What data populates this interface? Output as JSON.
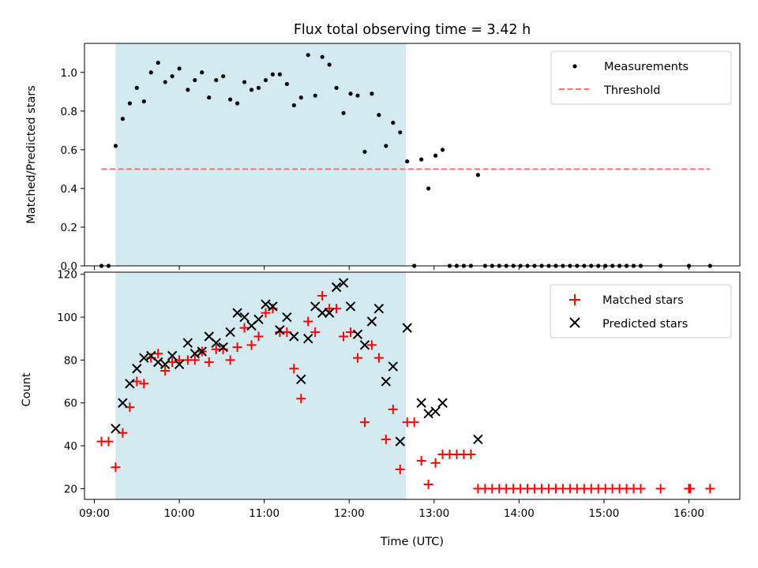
{
  "chart_data": [
    {
      "type": "scatter",
      "title": "Flux total observing time = 3.42 h",
      "xlabel": "",
      "ylabel": "Matched/Predicted stars",
      "xlim": [
        "08:53",
        "16:36"
      ],
      "ylim": [
        0,
        1.15
      ],
      "yticks": [
        0.0,
        0.2,
        0.4,
        0.6,
        0.8,
        1.0
      ],
      "ytick_labels": [
        "0.0",
        "0.2",
        "0.4",
        "0.6",
        "0.8",
        "1.0"
      ],
      "x_tick_times": [
        "09:00",
        "10:00",
        "11:00",
        "12:00",
        "13:00",
        "14:00",
        "15:00",
        "16:00"
      ],
      "shaded_region": {
        "x_start": "09:15",
        "x_end": "12:40",
        "color": "#d3eaf0"
      },
      "legend": {
        "placement": "top-right",
        "entries": [
          "Measurements",
          "Threshold"
        ]
      },
      "series": [
        {
          "name": "Measurements",
          "color": "#000000",
          "marker": "dot",
          "points": [
            [
              "09:05",
              0.0
            ],
            [
              "09:10",
              0.0
            ],
            [
              "09:15",
              0.62
            ],
            [
              "09:20",
              0.76
            ],
            [
              "09:25",
              0.84
            ],
            [
              "09:30",
              0.92
            ],
            [
              "09:35",
              0.85
            ],
            [
              "09:40",
              1.0
            ],
            [
              "09:45",
              1.05
            ],
            [
              "09:50",
              0.95
            ],
            [
              "09:55",
              0.98
            ],
            [
              "10:00",
              1.02
            ],
            [
              "10:06",
              0.91
            ],
            [
              "10:11",
              0.96
            ],
            [
              "10:16",
              1.0
            ],
            [
              "10:21",
              0.87
            ],
            [
              "10:26",
              0.96
            ],
            [
              "10:31",
              0.98
            ],
            [
              "10:36",
              0.86
            ],
            [
              "10:41",
              0.84
            ],
            [
              "10:46",
              0.95
            ],
            [
              "10:51",
              0.91
            ],
            [
              "10:56",
              0.92
            ],
            [
              "11:01",
              0.96
            ],
            [
              "11:06",
              0.99
            ],
            [
              "11:11",
              0.99
            ],
            [
              "11:16",
              0.94
            ],
            [
              "11:21",
              0.83
            ],
            [
              "11:26",
              0.87
            ],
            [
              "11:31",
              1.09
            ],
            [
              "11:36",
              0.88
            ],
            [
              "11:41",
              1.08
            ],
            [
              "11:46",
              1.04
            ],
            [
              "11:51",
              0.92
            ],
            [
              "11:56",
              0.79
            ],
            [
              "12:01",
              0.89
            ],
            [
              "12:06",
              0.88
            ],
            [
              "12:11",
              0.59
            ],
            [
              "12:16",
              0.89
            ],
            [
              "12:21",
              0.78
            ],
            [
              "12:26",
              0.62
            ],
            [
              "12:31",
              0.74
            ],
            [
              "12:36",
              0.69
            ],
            [
              "12:41",
              0.54
            ],
            [
              "12:46",
              0.0
            ],
            [
              "12:51",
              0.55
            ],
            [
              "12:56",
              0.4
            ],
            [
              "13:01",
              0.57
            ],
            [
              "13:06",
              0.6
            ],
            [
              "13:11",
              0.0
            ],
            [
              "13:16",
              0.0
            ],
            [
              "13:21",
              0.0
            ],
            [
              "13:26",
              0.0
            ],
            [
              "13:31",
              0.47
            ],
            [
              "13:36",
              0.0
            ],
            [
              "13:41",
              0.0
            ],
            [
              "13:46",
              0.0
            ],
            [
              "13:51",
              0.0
            ],
            [
              "13:56",
              0.0
            ],
            [
              "14:01",
              0.0
            ],
            [
              "14:06",
              0.0
            ],
            [
              "14:11",
              0.0
            ],
            [
              "14:16",
              0.0
            ],
            [
              "14:21",
              0.0
            ],
            [
              "14:26",
              0.0
            ],
            [
              "14:31",
              0.0
            ],
            [
              "14:36",
              0.0
            ],
            [
              "14:41",
              0.0
            ],
            [
              "14:46",
              0.0
            ],
            [
              "14:51",
              0.0
            ],
            [
              "14:56",
              0.0
            ],
            [
              "15:01",
              0.0
            ],
            [
              "15:06",
              0.0
            ],
            [
              "15:11",
              0.0
            ],
            [
              "15:16",
              0.0
            ],
            [
              "15:21",
              0.0
            ],
            [
              "15:26",
              0.0
            ],
            [
              "15:40",
              0.0
            ],
            [
              "16:00",
              0.0
            ],
            [
              "16:15",
              0.0
            ]
          ]
        },
        {
          "name": "Threshold",
          "color": "#ff7070",
          "style": "dashed-line",
          "points": [
            [
              "09:05",
              0.5
            ],
            [
              "16:15",
              0.5
            ]
          ]
        }
      ]
    },
    {
      "type": "scatter",
      "title": "",
      "xlabel": "Time (UTC)",
      "ylabel": "Count",
      "xlim": [
        "08:53",
        "16:36"
      ],
      "ylim": [
        15,
        121
      ],
      "yticks": [
        20,
        40,
        60,
        80,
        100,
        120
      ],
      "ytick_labels": [
        "20",
        "40",
        "60",
        "80",
        "100",
        "120"
      ],
      "x_tick_times": [
        "09:00",
        "10:00",
        "11:00",
        "12:00",
        "13:00",
        "14:00",
        "15:00",
        "16:00"
      ],
      "x_tick_labels": [
        "09:00",
        "10:00",
        "11:00",
        "12:00",
        "13:00",
        "14:00",
        "15:00",
        "16:00"
      ],
      "shaded_region": {
        "x_start": "09:15",
        "x_end": "12:40",
        "color": "#d3eaf0"
      },
      "legend": {
        "placement": "top-right",
        "entries": [
          "Matched stars",
          "Predicted stars"
        ]
      },
      "series": [
        {
          "name": "Matched stars",
          "color": "#ff0000",
          "marker": "plus",
          "points": [
            [
              "09:05",
              42
            ],
            [
              "09:10",
              42
            ],
            [
              "09:15",
              30
            ],
            [
              "09:20",
              46
            ],
            [
              "09:25",
              58
            ],
            [
              "09:30",
              70
            ],
            [
              "09:35",
              69
            ],
            [
              "09:40",
              81
            ],
            [
              "09:45",
              83
            ],
            [
              "09:50",
              75
            ],
            [
              "09:55",
              79
            ],
            [
              "10:00",
              80
            ],
            [
              "10:06",
              80
            ],
            [
              "10:11",
              80
            ],
            [
              "10:16",
              84
            ],
            [
              "10:21",
              79
            ],
            [
              "10:26",
              85
            ],
            [
              "10:31",
              85
            ],
            [
              "10:36",
              80
            ],
            [
              "10:41",
              86
            ],
            [
              "10:46",
              95
            ],
            [
              "10:51",
              87
            ],
            [
              "10:56",
              91
            ],
            [
              "11:01",
              102
            ],
            [
              "11:06",
              104
            ],
            [
              "11:11",
              93
            ],
            [
              "11:16",
              93
            ],
            [
              "11:21",
              76
            ],
            [
              "11:26",
              62
            ],
            [
              "11:31",
              98
            ],
            [
              "11:36",
              93
            ],
            [
              "11:41",
              110
            ],
            [
              "11:46",
              104
            ],
            [
              "11:51",
              104
            ],
            [
              "11:56",
              91
            ],
            [
              "12:01",
              93
            ],
            [
              "12:06",
              81
            ],
            [
              "12:11",
              51
            ],
            [
              "12:16",
              87
            ],
            [
              "12:21",
              81
            ],
            [
              "12:26",
              43
            ],
            [
              "12:31",
              57
            ],
            [
              "12:36",
              29
            ],
            [
              "12:41",
              51
            ],
            [
              "12:46",
              51
            ],
            [
              "12:51",
              33
            ],
            [
              "12:56",
              22
            ],
            [
              "13:01",
              32
            ],
            [
              "13:06",
              36
            ],
            [
              "13:11",
              36
            ],
            [
              "13:16",
              36
            ],
            [
              "13:21",
              36
            ],
            [
              "13:26",
              36
            ],
            [
              "13:31",
              20
            ],
            [
              "13:36",
              20
            ],
            [
              "13:41",
              20
            ],
            [
              "13:46",
              20
            ],
            [
              "13:51",
              20
            ],
            [
              "13:56",
              20
            ],
            [
              "14:01",
              20
            ],
            [
              "14:06",
              20
            ],
            [
              "14:11",
              20
            ],
            [
              "14:16",
              20
            ],
            [
              "14:21",
              20
            ],
            [
              "14:26",
              20
            ],
            [
              "14:31",
              20
            ],
            [
              "14:36",
              20
            ],
            [
              "14:41",
              20
            ],
            [
              "14:46",
              20
            ],
            [
              "14:51",
              20
            ],
            [
              "14:56",
              20
            ],
            [
              "15:01",
              20
            ],
            [
              "15:06",
              20
            ],
            [
              "15:11",
              20
            ],
            [
              "15:16",
              20
            ],
            [
              "15:21",
              20
            ],
            [
              "15:26",
              20
            ],
            [
              "15:40",
              20
            ],
            [
              "16:00",
              20
            ],
            [
              "16:01",
              20
            ],
            [
              "16:15",
              20
            ]
          ]
        },
        {
          "name": "Predicted stars",
          "color": "#000000",
          "marker": "x",
          "points": [
            [
              "09:15",
              48
            ],
            [
              "09:20",
              60
            ],
            [
              "09:25",
              69
            ],
            [
              "09:30",
              76
            ],
            [
              "09:35",
              81
            ],
            [
              "09:40",
              82
            ],
            [
              "09:45",
              79
            ],
            [
              "09:50",
              78
            ],
            [
              "09:55",
              82
            ],
            [
              "10:00",
              78
            ],
            [
              "10:06",
              88
            ],
            [
              "10:11",
              83
            ],
            [
              "10:16",
              84
            ],
            [
              "10:21",
              91
            ],
            [
              "10:26",
              88
            ],
            [
              "10:31",
              86
            ],
            [
              "10:36",
              93
            ],
            [
              "10:41",
              102
            ],
            [
              "10:46",
              100
            ],
            [
              "10:51",
              96
            ],
            [
              "10:56",
              99
            ],
            [
              "11:01",
              106
            ],
            [
              "11:06",
              105
            ],
            [
              "11:11",
              94
            ],
            [
              "11:16",
              100
            ],
            [
              "11:21",
              91
            ],
            [
              "11:26",
              71
            ],
            [
              "11:31",
              90
            ],
            [
              "11:36",
              105
            ],
            [
              "11:41",
              102
            ],
            [
              "11:46",
              102
            ],
            [
              "11:51",
              114
            ],
            [
              "11:56",
              116
            ],
            [
              "12:01",
              105
            ],
            [
              "12:06",
              92
            ],
            [
              "12:11",
              87
            ],
            [
              "12:16",
              98
            ],
            [
              "12:21",
              104
            ],
            [
              "12:26",
              70
            ],
            [
              "12:31",
              77
            ],
            [
              "12:36",
              42
            ],
            [
              "12:41",
              95
            ],
            [
              "12:51",
              60
            ],
            [
              "12:56",
              55
            ],
            [
              "13:01",
              56
            ],
            [
              "13:06",
              60
            ],
            [
              "13:31",
              43
            ]
          ]
        }
      ]
    }
  ]
}
